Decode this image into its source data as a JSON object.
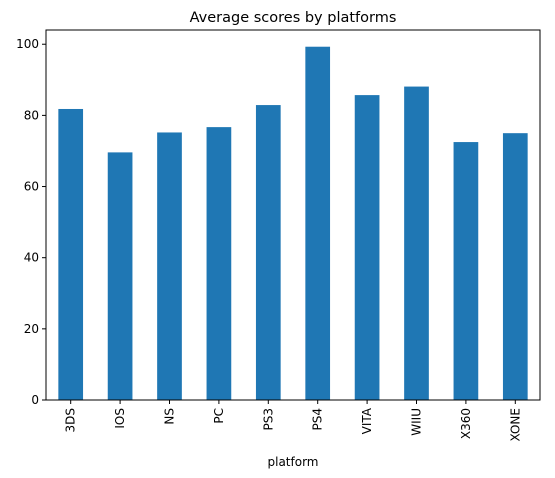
{
  "chart_data": {
    "type": "bar",
    "title": "Average scores by platforms",
    "xlabel": "platform",
    "ylabel": "",
    "categories": [
      "3DS",
      "IOS",
      "NS",
      "PC",
      "PS3",
      "PS4",
      "VITA",
      "WIIU",
      "X360",
      "XONE"
    ],
    "values": [
      81.8,
      69.6,
      75.2,
      76.7,
      82.9,
      99.3,
      85.7,
      88.1,
      72.5,
      75.0
    ],
    "ylim": [
      0,
      104
    ],
    "yticks": [
      0,
      20,
      40,
      60,
      80,
      100
    ],
    "bar_color": "#1f77b4",
    "grid": false,
    "legend": "none"
  }
}
